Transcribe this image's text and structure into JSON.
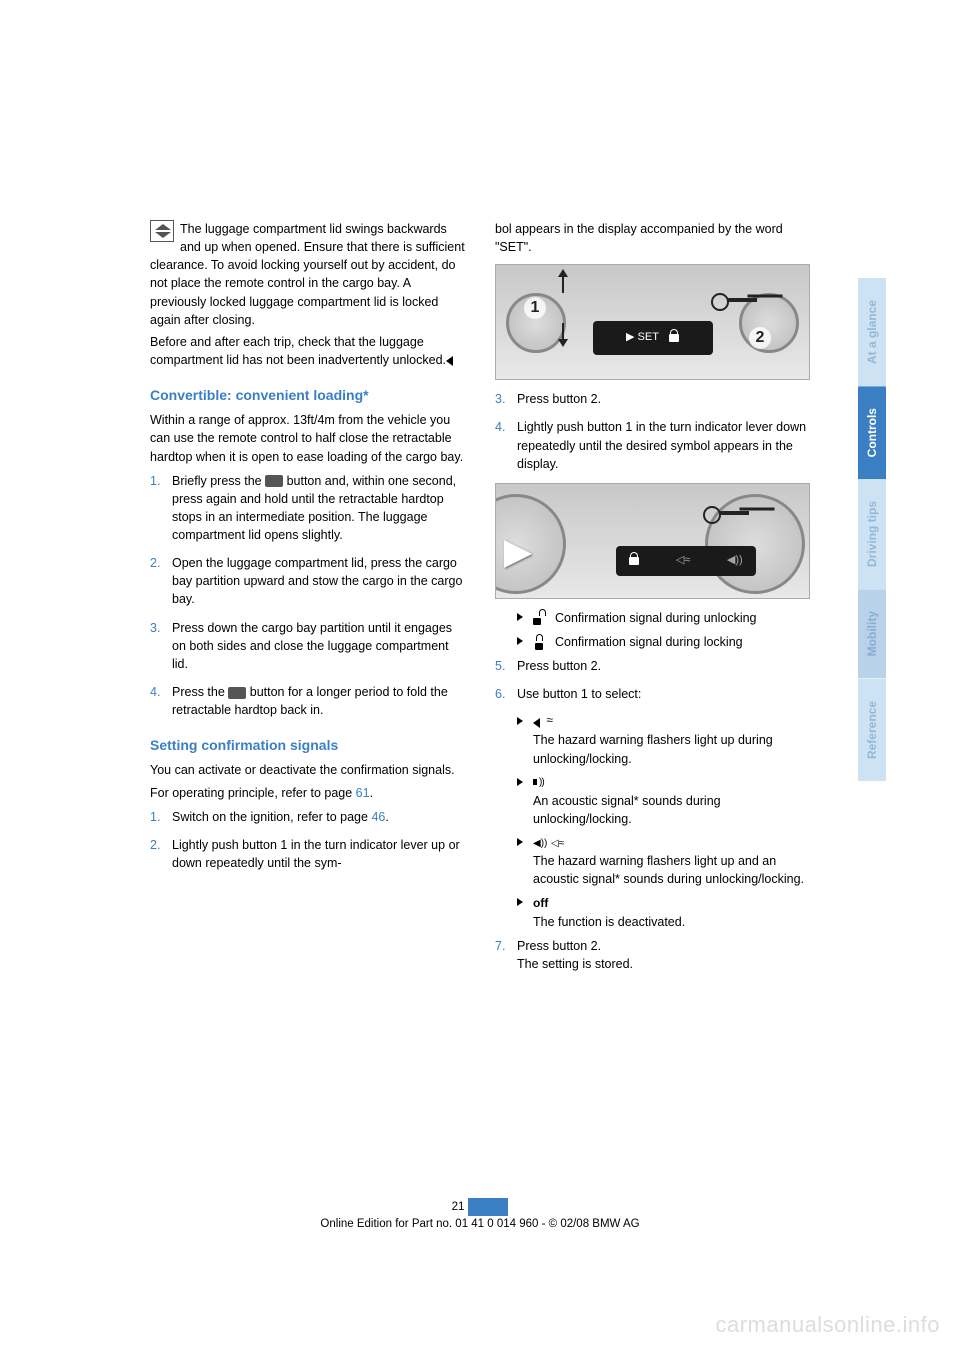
{
  "warning": {
    "text_part1": "The luggage compartment lid swings backwards and up when opened. Ensure that there is sufficient clearance. To avoid locking yourself out by accident, do not place the remote control in the cargo bay. A previously locked luggage compartment lid is locked again after closing.",
    "text_part2": "Before and after each trip, check that the luggage compartment lid has not been inadvertently unlocked."
  },
  "section1": {
    "heading": "Convertible: convenient loading*",
    "intro": "Within a range of approx. 13ft/4m from the vehicle you can use the remote control to half close the retractable hardtop when it is open to ease loading of the cargo bay.",
    "steps": [
      {
        "n": "1.",
        "t_before": "Briefly press the ",
        "t_after": " button and, within one second, press again and hold until the retractable hardtop stops in an intermediate position. The luggage compartment lid opens slightly."
      },
      {
        "n": "2.",
        "t": "Open the luggage compartment lid, press the cargo bay partition upward and stow the cargo in the cargo bay."
      },
      {
        "n": "3.",
        "t": "Press down the cargo bay partition until it engages on both sides and close the luggage compartment lid."
      },
      {
        "n": "4.",
        "t_before": "Press the ",
        "t_after": " button for a longer period to fold the retractable hardtop back in."
      }
    ]
  },
  "section2": {
    "heading": "Setting confirmation signals",
    "intro": "You can activate or deactivate the confirmation signals.",
    "principle_before": "For operating principle, refer to page ",
    "principle_link": "61",
    "principle_after": ".",
    "steps_left": [
      {
        "n": "1.",
        "t_before": "Switch on the ignition, refer to page ",
        "link": "46",
        "t_after": "."
      },
      {
        "n": "2.",
        "t": "Lightly push button 1 in the turn indicator lever up or down repeatedly until the sym-"
      }
    ]
  },
  "right": {
    "cont": "bol appears in the display accompanied by the word \"SET\".",
    "fig1_display_left": "▶ SET",
    "steps_a": [
      {
        "n": "3.",
        "t": "Press button 2."
      },
      {
        "n": "4.",
        "t": "Lightly push button 1 in the turn indicator lever down repeatedly until the desired symbol appears in the display."
      }
    ],
    "bullets_conf": [
      {
        "t": "Confirmation signal during unlocking"
      },
      {
        "t": "Confirmation signal during locking"
      }
    ],
    "steps_b": [
      {
        "n": "5.",
        "t": "Press button 2."
      },
      {
        "n": "6.",
        "t": "Use button 1 to select:"
      }
    ],
    "bullets_opts": [
      {
        "icon": "flash",
        "t": "The hazard warning flashers light up during unlocking/locking."
      },
      {
        "icon": "sound",
        "t": "An acoustic signal* sounds during unlocking/locking."
      },
      {
        "icon": "both",
        "t": "The hazard warning flashers light up and an acoustic signal* sounds during unlocking/locking."
      },
      {
        "icon": "off",
        "t": "The function is deactivated."
      }
    ],
    "steps_c": [
      {
        "n": "7.",
        "t1": "Press button 2.",
        "t2": "The setting is stored."
      }
    ]
  },
  "tabs": {
    "glance": "At a glance",
    "controls": "Controls",
    "driving": "Driving tips",
    "mobility": "Mobility",
    "reference": "Reference"
  },
  "footer": {
    "page": "21",
    "line": "Online Edition for Part no. 01 41 0 014 960 - © 02/08 BMW AG"
  },
  "watermark": "carmanualsonline.info",
  "colors": {
    "accent": "#3a7fc4",
    "tab_muted_bg": "#cde3f4",
    "tab_muted_txt": "#94b8d4"
  }
}
